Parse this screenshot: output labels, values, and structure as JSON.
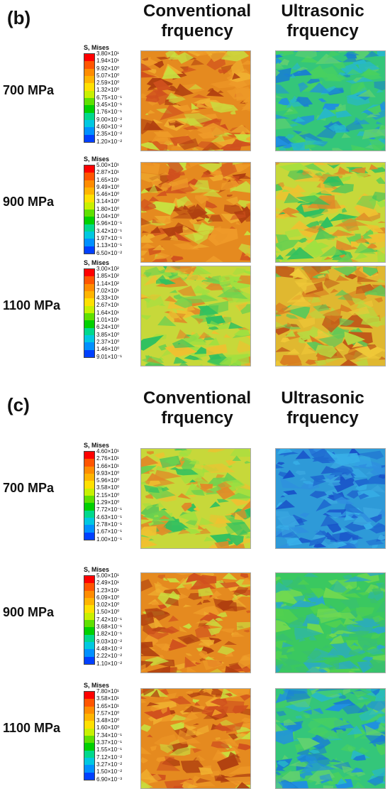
{
  "panels": [
    {
      "label": "(b)",
      "col_titles": [
        "Conventional\nfrquency",
        "Ultrasonic\nfrquency"
      ],
      "rows": [
        {
          "label": "700 MPa",
          "legend_title": "S, Mises",
          "values": [
            "3.80×10¹",
            "1.94×10¹",
            "9.92×10⁰",
            "5.07×10⁰",
            "2.59×10⁰",
            "1.32×10⁰",
            "6.75×10⁻¹",
            "3.45×10⁻¹",
            "1.76×10⁻¹",
            "9.00×10⁻²",
            "4.60×10⁻²",
            "2.35×10⁻²",
            "1.20×10⁻²"
          ],
          "conventional": "orange",
          "ultrasonic": "green-blue"
        },
        {
          "label": "900 MPa",
          "legend_title": "S, Mises",
          "values": [
            "5.00×10¹",
            "2.87×10¹",
            "1.65×10¹",
            "9.49×10⁰",
            "5.46×10⁰",
            "3.14×10⁰",
            "1.80×10⁰",
            "1.04×10⁰",
            "5.96×10⁻¹",
            "3.42×10⁻¹",
            "1.97×10⁻¹",
            "1.13×10⁻¹",
            "6.50×10⁻²"
          ],
          "conventional": "orange",
          "ultrasonic": "yellow-green"
        },
        {
          "label": "1100 MPa",
          "legend_title": "S, Mises",
          "values": [
            "3.00×10²",
            "1.85×10²",
            "1.14×10²",
            "7.02×10¹",
            "4.33×10¹",
            "2.67×10¹",
            "1.64×10¹",
            "1.01×10¹",
            "6.24×10⁰",
            "3.85×10⁰",
            "2.37×10⁰",
            "1.46×10⁰",
            "9.01×10⁻¹"
          ],
          "conventional": "yellow-green",
          "ultrasonic": "yellow-orange"
        }
      ]
    },
    {
      "label": "(c)",
      "col_titles": [
        "Conventional\nfrquency",
        "Ultrasonic\nfrquency"
      ],
      "rows": [
        {
          "label": "700 MPa",
          "legend_title": "S, Mises",
          "values": [
            "4.60×10¹",
            "2.76×10¹",
            "1.66×10¹",
            "9.93×10⁰",
            "5.96×10⁰",
            "3.58×10⁰",
            "2.15×10⁰",
            "1.29×10⁰",
            "7.72×10⁻¹",
            "4.63×10⁻¹",
            "2.78×10⁻¹",
            "1.67×10⁻¹",
            "1.00×10⁻¹"
          ],
          "conventional": "yellow-green",
          "ultrasonic": "blue"
        },
        {
          "label": "900 MPa",
          "legend_title": "S, Mises",
          "values": [
            "5.00×10¹",
            "2.49×10¹",
            "1.23×10¹",
            "6.09×10⁰",
            "3.02×10⁰",
            "1.50×10⁰",
            "7.42×10⁻¹",
            "3.68×10⁻¹",
            "1.82×10⁻¹",
            "9.03×10⁻²",
            "4.48×10⁻²",
            "2.22×10⁻²",
            "1.10×10⁻²"
          ],
          "conventional": "orange",
          "ultrasonic": "green"
        },
        {
          "label": "1100 MPa",
          "legend_title": "S, Mises",
          "values": [
            "7.80×10¹",
            "3.58×10¹",
            "1.65×10¹",
            "7.57×10⁰",
            "3.48×10⁰",
            "1.60×10⁰",
            "7.34×10⁻¹",
            "3.37×10⁻¹",
            "1.55×10⁻¹",
            "7.12×10⁻²",
            "3.27×10⁻²",
            "1.50×10⁻²",
            "6.90×10⁻³"
          ],
          "conventional": "orange",
          "ultrasonic": "green-blue"
        }
      ]
    }
  ],
  "colors": {
    "legend_scale": [
      "#ff0000",
      "#ff5500",
      "#ff8c00",
      "#ffb400",
      "#ffe000",
      "#c8f000",
      "#5fe000",
      "#00d000",
      "#00d88c",
      "#00c8e0",
      "#0090ff",
      "#0040ff",
      "#0000ff"
    ],
    "themes": {
      "orange": {
        "base": "#e58a1f",
        "spots": [
          "#d0501e",
          "#b04010",
          "#f0b030",
          "#c8e040",
          "#ee9a28"
        ]
      },
      "yellow-green": {
        "base": "#c7d83a",
        "spots": [
          "#e08a28",
          "#6ad050",
          "#f0c030",
          "#30c060",
          "#a0e040"
        ]
      },
      "yellow-orange": {
        "base": "#e0b830",
        "spots": [
          "#d87a20",
          "#b8d840",
          "#f0c838",
          "#60c858",
          "#c05818"
        ]
      },
      "green-blue": {
        "base": "#34c67a",
        "spots": [
          "#27b8c8",
          "#48d060",
          "#1a80d0",
          "#2090e0",
          "#60d070"
        ]
      },
      "green": {
        "base": "#3ac860",
        "spots": [
          "#30b8a0",
          "#50d050",
          "#2aa8c8",
          "#70d850",
          "#38c070"
        ]
      },
      "blue": {
        "base": "#2e9ad8",
        "spots": [
          "#1e6ad0",
          "#2f8ee0",
          "#3aa6e0",
          "#1850c8",
          "#38b0e8"
        ]
      }
    }
  }
}
